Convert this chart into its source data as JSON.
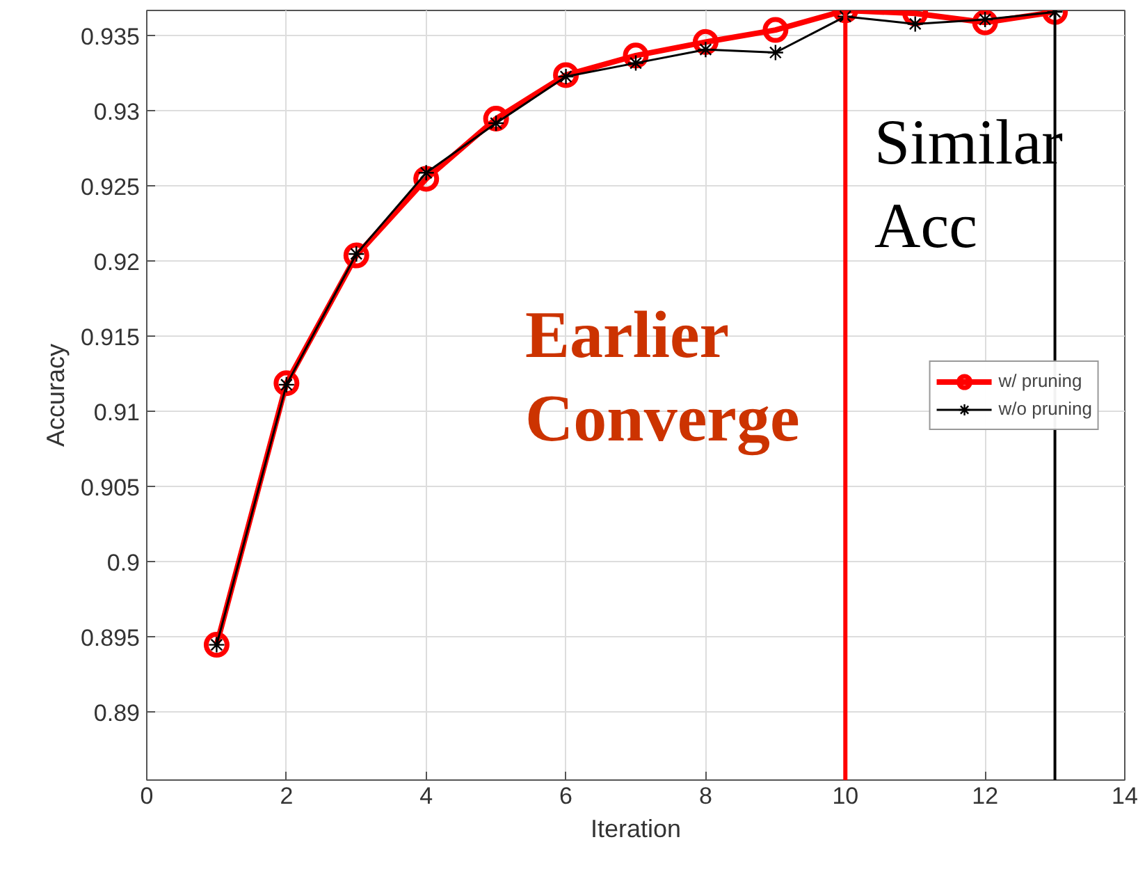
{
  "chart_data": {
    "type": "line",
    "xlabel": "Iteration",
    "ylabel": "Accuracy",
    "x": [
      1,
      2,
      3,
      4,
      5,
      6,
      7,
      8,
      9,
      10,
      11,
      12,
      13
    ],
    "series": [
      {
        "name": "w/ pruning",
        "color": "#ff0000",
        "marker": "circle",
        "values": [
          0.8945,
          0.9119,
          0.9204,
          0.9255,
          0.9295,
          0.9324,
          0.9337,
          0.9346,
          0.9354,
          0.9367,
          0.9365,
          0.9359,
          0.9366
        ]
      },
      {
        "name": "w/o pruning",
        "color": "#000000",
        "marker": "cross",
        "values": [
          0.8945,
          0.9118,
          0.9205,
          0.9259,
          0.9292,
          0.9323,
          0.9332,
          0.9341,
          0.9339,
          0.9363,
          0.9358,
          0.9361,
          0.9366
        ]
      }
    ],
    "xlim": [
      0,
      14
    ],
    "xticks": [
      0,
      2,
      4,
      6,
      8,
      10,
      12,
      14
    ],
    "ylim": [
      0.8855,
      0.9367
    ],
    "yticks": [
      0.89,
      0.895,
      0.9,
      0.905,
      0.91,
      0.915,
      0.92,
      0.925,
      0.93,
      0.935
    ],
    "ref_lines": [
      {
        "axis": "x",
        "value": 10,
        "color": "#ff0000"
      },
      {
        "axis": "x",
        "value": 13,
        "color": "#000000"
      }
    ],
    "annotations": [
      "Earlier Converge",
      "Similar Acc"
    ],
    "grid": true,
    "legend": "right"
  }
}
